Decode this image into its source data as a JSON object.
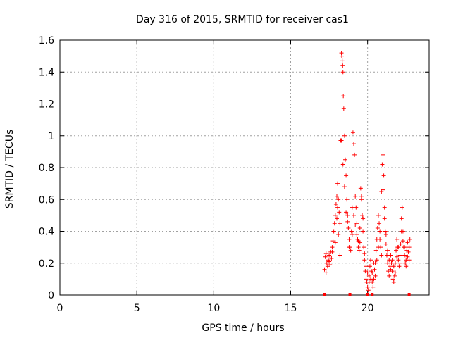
{
  "chart_data": {
    "type": "scatter",
    "title": "Day 316 of 2015, SRMTID for receiver cas1",
    "xlabel": "GPS time / hours",
    "ylabel": "SRMTID / TECUs",
    "xlim": [
      0,
      24
    ],
    "ylim": [
      0,
      1.6
    ],
    "xticks": [
      0,
      5,
      10,
      15,
      20
    ],
    "yticks": [
      0,
      0.2,
      0.4,
      0.6,
      0.8,
      1,
      1.2,
      1.4,
      1.6
    ],
    "xtick_labels": [
      "0",
      "5",
      "10",
      "15",
      "20"
    ],
    "ytick_labels": [
      "0",
      "0.2",
      "0.4",
      "0.6",
      "0.8",
      "1",
      "1.2",
      "1.4",
      "1.6"
    ],
    "grid": true,
    "marker_color": "#ff0000",
    "series": [
      {
        "name": "cas1",
        "marker": "plus",
        "points": [
          [
            17.2,
            0.16
          ],
          [
            17.25,
            0.24
          ],
          [
            17.3,
            0.26
          ],
          [
            17.35,
            0.2
          ],
          [
            17.4,
            0.18
          ],
          [
            17.45,
            0.22
          ],
          [
            17.5,
            0.25
          ],
          [
            17.55,
            0.19
          ],
          [
            17.6,
            0.27
          ],
          [
            17.65,
            0.23
          ],
          [
            17.7,
            0.3
          ],
          [
            17.75,
            0.34
          ],
          [
            17.8,
            0.4
          ],
          [
            17.85,
            0.45
          ],
          [
            17.9,
            0.5
          ],
          [
            17.95,
            0.57
          ],
          [
            18.0,
            0.62
          ],
          [
            18.05,
            0.7
          ],
          [
            18.1,
            0.6
          ],
          [
            18.15,
            0.52
          ],
          [
            18.2,
            0.45
          ],
          [
            18.25,
            0.97
          ],
          [
            18.3,
            1.52
          ],
          [
            18.32,
            1.5
          ],
          [
            18.35,
            1.47
          ],
          [
            18.38,
            1.44
          ],
          [
            18.4,
            1.4
          ],
          [
            18.42,
            1.25
          ],
          [
            18.45,
            1.17
          ],
          [
            18.5,
            1.0
          ],
          [
            18.55,
            0.85
          ],
          [
            18.6,
            0.75
          ],
          [
            18.65,
            0.6
          ],
          [
            18.7,
            0.5
          ],
          [
            18.75,
            0.42
          ],
          [
            18.8,
            0.35
          ],
          [
            18.85,
            0.3
          ],
          [
            18.9,
            0.28
          ],
          [
            18.95,
            0.4
          ],
          [
            19.0,
            0.55
          ],
          [
            19.05,
            1.02
          ],
          [
            19.1,
            0.95
          ],
          [
            19.15,
            0.88
          ],
          [
            19.2,
            0.62
          ],
          [
            19.25,
            0.55
          ],
          [
            19.3,
            0.45
          ],
          [
            19.35,
            0.35
          ],
          [
            19.4,
            0.3
          ],
          [
            19.45,
            0.28
          ],
          [
            19.5,
            0.33
          ],
          [
            19.55,
            0.67
          ],
          [
            19.6,
            0.6
          ],
          [
            19.65,
            0.5
          ],
          [
            19.7,
            0.4
          ],
          [
            19.75,
            0.3
          ],
          [
            19.8,
            0.22
          ],
          [
            19.85,
            0.15
          ],
          [
            19.9,
            0.1
          ],
          [
            19.95,
            0.08
          ],
          [
            20.0,
            0.05
          ],
          [
            20.05,
            0.03
          ],
          [
            20.1,
            0.12
          ],
          [
            20.15,
            0.18
          ],
          [
            20.2,
            0.22
          ],
          [
            20.25,
            0.15
          ],
          [
            20.3,
            0.08
          ],
          [
            20.35,
            0.05
          ],
          [
            20.4,
            0.1
          ],
          [
            20.45,
            0.16
          ],
          [
            20.5,
            0.2
          ],
          [
            20.55,
            0.28
          ],
          [
            20.6,
            0.35
          ],
          [
            20.65,
            0.42
          ],
          [
            20.7,
            0.5
          ],
          [
            20.75,
            0.45
          ],
          [
            20.8,
            0.35
          ],
          [
            20.85,
            0.3
          ],
          [
            20.9,
            0.65
          ],
          [
            20.95,
            0.82
          ],
          [
            21.0,
            0.88
          ],
          [
            21.05,
            0.75
          ],
          [
            21.1,
            0.55
          ],
          [
            21.15,
            0.4
          ],
          [
            21.2,
            0.32
          ],
          [
            21.25,
            0.25
          ],
          [
            21.3,
            0.2
          ],
          [
            21.35,
            0.15
          ],
          [
            21.4,
            0.12
          ],
          [
            21.45,
            0.18
          ],
          [
            21.5,
            0.25
          ],
          [
            21.55,
            0.2
          ],
          [
            21.6,
            0.15
          ],
          [
            21.65,
            0.1
          ],
          [
            21.7,
            0.08
          ],
          [
            21.75,
            0.12
          ],
          [
            21.8,
            0.2
          ],
          [
            21.85,
            0.28
          ],
          [
            21.9,
            0.35
          ],
          [
            21.95,
            0.3
          ],
          [
            22.0,
            0.22
          ],
          [
            22.05,
            0.18
          ],
          [
            22.1,
            0.25
          ],
          [
            22.15,
            0.32
          ],
          [
            22.2,
            0.48
          ],
          [
            22.25,
            0.55
          ],
          [
            22.3,
            0.4
          ],
          [
            22.35,
            0.3
          ],
          [
            22.4,
            0.25
          ],
          [
            22.45,
            0.2
          ],
          [
            22.5,
            0.22
          ],
          [
            22.55,
            0.28
          ],
          [
            22.6,
            0.33
          ],
          [
            22.65,
            0.27
          ],
          [
            22.7,
            0.22
          ],
          [
            22.75,
            0.35
          ],
          [
            17.3,
            0.14
          ],
          [
            17.5,
            0.21
          ],
          [
            17.7,
            0.27
          ],
          [
            17.9,
            0.33
          ],
          [
            18.0,
            0.48
          ],
          [
            18.05,
            0.55
          ],
          [
            18.1,
            0.38
          ],
          [
            18.2,
            0.25
          ],
          [
            18.3,
            0.97
          ],
          [
            18.4,
            0.82
          ],
          [
            18.5,
            0.68
          ],
          [
            18.6,
            0.52
          ],
          [
            18.7,
            0.46
          ],
          [
            18.8,
            0.3
          ],
          [
            19.0,
            0.38
          ],
          [
            19.1,
            0.5
          ],
          [
            19.2,
            0.44
          ],
          [
            19.3,
            0.38
          ],
          [
            19.4,
            0.34
          ],
          [
            19.5,
            0.42
          ],
          [
            19.6,
            0.62
          ],
          [
            19.7,
            0.48
          ],
          [
            19.8,
            0.26
          ],
          [
            19.9,
            0.18
          ],
          [
            20.0,
            0.14
          ],
          [
            20.1,
            0.08
          ],
          [
            20.2,
            0.1
          ],
          [
            20.3,
            0.14
          ],
          [
            20.4,
            0.2
          ],
          [
            20.5,
            0.12
          ],
          [
            20.6,
            0.22
          ],
          [
            20.7,
            0.3
          ],
          [
            20.8,
            0.4
          ],
          [
            20.9,
            0.25
          ],
          [
            21.0,
            0.66
          ],
          [
            21.1,
            0.48
          ],
          [
            21.2,
            0.38
          ],
          [
            21.3,
            0.28
          ],
          [
            21.4,
            0.22
          ],
          [
            21.5,
            0.16
          ],
          [
            21.6,
            0.22
          ],
          [
            21.7,
            0.18
          ],
          [
            21.8,
            0.14
          ],
          [
            21.9,
            0.24
          ],
          [
            22.0,
            0.3
          ],
          [
            22.1,
            0.2
          ],
          [
            22.2,
            0.4
          ],
          [
            22.3,
            0.34
          ],
          [
            22.4,
            0.3
          ],
          [
            22.5,
            0.18
          ],
          [
            22.6,
            0.24
          ],
          [
            22.7,
            0.3
          ],
          [
            17.22,
            0.0
          ],
          [
            18.85,
            0.0
          ],
          [
            20.0,
            0.0
          ],
          [
            20.3,
            0.0
          ],
          [
            22.7,
            0.0
          ]
        ]
      }
    ]
  }
}
